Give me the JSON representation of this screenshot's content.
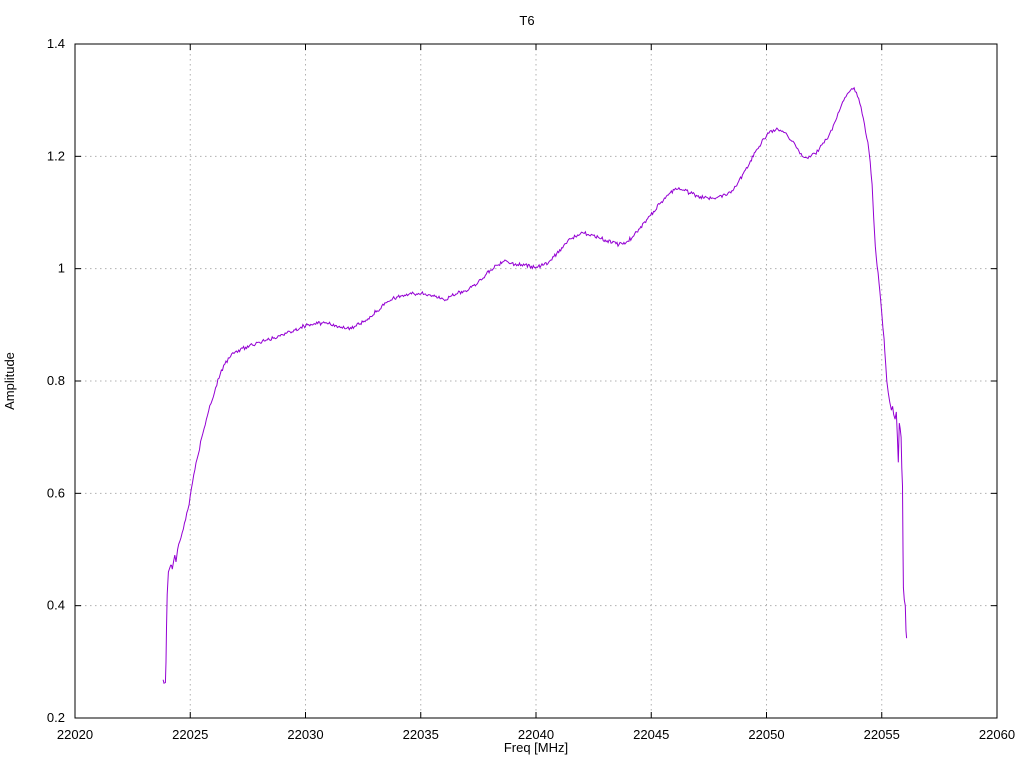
{
  "chart_data": {
    "type": "line",
    "title": "T6",
    "xlabel": "Freq [MHz]",
    "ylabel": "Amplitude",
    "xlim": [
      22020,
      22060
    ],
    "ylim": [
      0.2,
      1.4
    ],
    "xticks": {
      "values": [
        22020,
        22025,
        22030,
        22035,
        22040,
        22045,
        22050,
        22055,
        22060
      ],
      "labels": [
        "22020",
        "22025",
        "22030",
        "22035",
        "22040",
        "22045",
        "22050",
        "22055",
        "22060"
      ]
    },
    "yticks": {
      "values": [
        0.2,
        0.4,
        0.6,
        0.8,
        1.0,
        1.2,
        1.4
      ],
      "labels": [
        "0.2",
        "0.4",
        "0.6",
        "0.8",
        "1",
        "1.2",
        "1.4"
      ]
    },
    "grid": true,
    "legend": "none",
    "line_color": "#9400d3",
    "grid_color": "#b0b0b0",
    "border_color": "#000000",
    "background": "#ffffff",
    "noise_amplitude": 0.0035,
    "series": [
      {
        "name": "T6",
        "points": [
          [
            22023.82,
            0.268
          ],
          [
            22023.86,
            0.262
          ],
          [
            22023.92,
            0.263
          ],
          [
            22023.95,
            0.3
          ],
          [
            22023.97,
            0.36
          ],
          [
            22024.0,
            0.42
          ],
          [
            22024.05,
            0.46
          ],
          [
            22024.15,
            0.472
          ],
          [
            22024.22,
            0.465
          ],
          [
            22024.28,
            0.48
          ],
          [
            22024.33,
            0.49
          ],
          [
            22024.38,
            0.478
          ],
          [
            22024.45,
            0.5
          ],
          [
            22024.55,
            0.515
          ],
          [
            22024.65,
            0.53
          ],
          [
            22024.8,
            0.553
          ],
          [
            22024.95,
            0.58
          ],
          [
            22025.1,
            0.62
          ],
          [
            22025.3,
            0.662
          ],
          [
            22025.5,
            0.7
          ],
          [
            22025.7,
            0.732
          ],
          [
            22025.9,
            0.76
          ],
          [
            22026.1,
            0.788
          ],
          [
            22026.3,
            0.812
          ],
          [
            22026.5,
            0.83
          ],
          [
            22026.7,
            0.841
          ],
          [
            22026.9,
            0.849
          ],
          [
            22027.1,
            0.855
          ],
          [
            22027.4,
            0.86
          ],
          [
            22027.7,
            0.864
          ],
          [
            22028.0,
            0.869
          ],
          [
            22028.3,
            0.873
          ],
          [
            22028.6,
            0.876
          ],
          [
            22028.9,
            0.88
          ],
          [
            22029.2,
            0.886
          ],
          [
            22029.5,
            0.891
          ],
          [
            22029.8,
            0.896
          ],
          [
            22030.1,
            0.9
          ],
          [
            22030.4,
            0.902
          ],
          [
            22030.7,
            0.903
          ],
          [
            22031.0,
            0.902
          ],
          [
            22031.3,
            0.899
          ],
          [
            22031.55,
            0.896
          ],
          [
            22031.75,
            0.893
          ],
          [
            22031.95,
            0.895
          ],
          [
            22032.2,
            0.898
          ],
          [
            22032.5,
            0.905
          ],
          [
            22032.8,
            0.915
          ],
          [
            22033.1,
            0.925
          ],
          [
            22033.4,
            0.935
          ],
          [
            22033.7,
            0.944
          ],
          [
            22034.0,
            0.95
          ],
          [
            22034.3,
            0.953
          ],
          [
            22034.6,
            0.955
          ],
          [
            22034.9,
            0.956
          ],
          [
            22035.2,
            0.955
          ],
          [
            22035.5,
            0.952
          ],
          [
            22035.75,
            0.948
          ],
          [
            22036.0,
            0.945
          ],
          [
            22036.3,
            0.951
          ],
          [
            22036.6,
            0.956
          ],
          [
            22036.9,
            0.96
          ],
          [
            22037.2,
            0.967
          ],
          [
            22037.5,
            0.977
          ],
          [
            22037.8,
            0.988
          ],
          [
            22038.05,
            0.998
          ],
          [
            22038.3,
            1.006
          ],
          [
            22038.55,
            1.012
          ],
          [
            22038.75,
            1.013
          ],
          [
            22038.95,
            1.01
          ],
          [
            22039.2,
            1.007
          ],
          [
            22039.5,
            1.006
          ],
          [
            22039.8,
            1.004
          ],
          [
            22040.05,
            1.002
          ],
          [
            22040.3,
            1.006
          ],
          [
            22040.6,
            1.014
          ],
          [
            22040.9,
            1.027
          ],
          [
            22041.2,
            1.041
          ],
          [
            22041.5,
            1.053
          ],
          [
            22041.8,
            1.06
          ],
          [
            22042.1,
            1.063
          ],
          [
            22042.4,
            1.061
          ],
          [
            22042.7,
            1.056
          ],
          [
            22043.0,
            1.051
          ],
          [
            22043.3,
            1.046
          ],
          [
            22043.6,
            1.043
          ],
          [
            22043.9,
            1.046
          ],
          [
            22044.2,
            1.057
          ],
          [
            22044.5,
            1.071
          ],
          [
            22044.8,
            1.087
          ],
          [
            22045.1,
            1.102
          ],
          [
            22045.4,
            1.117
          ],
          [
            22045.7,
            1.131
          ],
          [
            22046.0,
            1.14
          ],
          [
            22046.2,
            1.144
          ],
          [
            22046.4,
            1.14
          ],
          [
            22046.7,
            1.134
          ],
          [
            22047.0,
            1.129
          ],
          [
            22047.3,
            1.126
          ],
          [
            22047.6,
            1.125
          ],
          [
            22047.9,
            1.128
          ],
          [
            22048.2,
            1.132
          ],
          [
            22048.5,
            1.139
          ],
          [
            22048.75,
            1.152
          ],
          [
            22049.0,
            1.17
          ],
          [
            22049.3,
            1.192
          ],
          [
            22049.6,
            1.213
          ],
          [
            22049.9,
            1.231
          ],
          [
            22050.1,
            1.241
          ],
          [
            22050.3,
            1.247
          ],
          [
            22050.5,
            1.248
          ],
          [
            22050.7,
            1.245
          ],
          [
            22050.9,
            1.238
          ],
          [
            22051.1,
            1.227
          ],
          [
            22051.3,
            1.215
          ],
          [
            22051.5,
            1.205
          ],
          [
            22051.7,
            1.198
          ],
          [
            22051.9,
            1.199
          ],
          [
            22052.1,
            1.205
          ],
          [
            22052.3,
            1.214
          ],
          [
            22052.5,
            1.224
          ],
          [
            22052.7,
            1.236
          ],
          [
            22052.9,
            1.255
          ],
          [
            22053.1,
            1.277
          ],
          [
            22053.3,
            1.297
          ],
          [
            22053.5,
            1.311
          ],
          [
            22053.65,
            1.318
          ],
          [
            22053.8,
            1.322
          ],
          [
            22053.9,
            1.314
          ],
          [
            22054.0,
            1.303
          ],
          [
            22054.1,
            1.288
          ],
          [
            22054.2,
            1.268
          ],
          [
            22054.3,
            1.243
          ],
          [
            22054.4,
            1.225
          ],
          [
            22054.5,
            1.19
          ],
          [
            22054.58,
            1.15
          ],
          [
            22054.65,
            1.09
          ],
          [
            22054.72,
            1.04
          ],
          [
            22054.8,
            1.005
          ],
          [
            22054.88,
            0.975
          ],
          [
            22054.95,
            0.945
          ],
          [
            22055.0,
            0.92
          ],
          [
            22055.05,
            0.895
          ],
          [
            22055.1,
            0.875
          ],
          [
            22055.13,
            0.855
          ],
          [
            22055.17,
            0.83
          ],
          [
            22055.22,
            0.8
          ],
          [
            22055.28,
            0.78
          ],
          [
            22055.35,
            0.762
          ],
          [
            22055.42,
            0.748
          ],
          [
            22055.47,
            0.755
          ],
          [
            22055.52,
            0.74
          ],
          [
            22055.58,
            0.732
          ],
          [
            22055.63,
            0.745
          ],
          [
            22055.68,
            0.7
          ],
          [
            22055.72,
            0.655
          ],
          [
            22055.76,
            0.725
          ],
          [
            22055.8,
            0.715
          ],
          [
            22055.84,
            0.7
          ],
          [
            22055.87,
            0.645
          ],
          [
            22055.9,
            0.613
          ],
          [
            22055.92,
            0.5
          ],
          [
            22055.94,
            0.432
          ],
          [
            22055.98,
            0.41
          ],
          [
            22056.02,
            0.4
          ],
          [
            22056.05,
            0.355
          ],
          [
            22056.08,
            0.342
          ]
        ]
      }
    ]
  }
}
